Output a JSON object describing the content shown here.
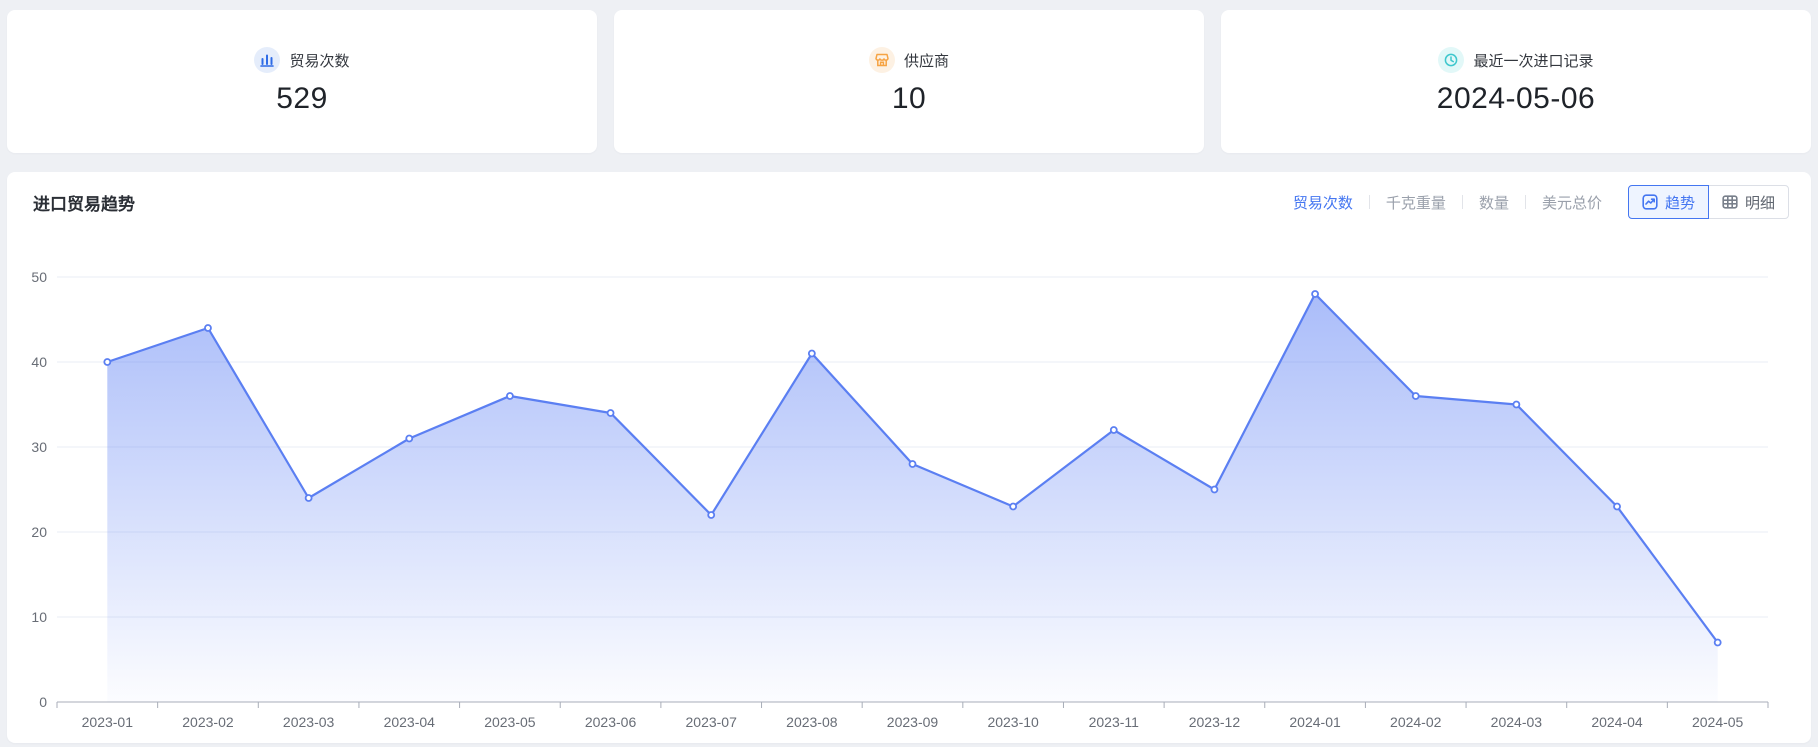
{
  "stats": [
    {
      "icon": "bar-chart",
      "label": "贸易次数",
      "value": "529",
      "icon_color": "#2e6be6",
      "icon_bg": "#e5edfb"
    },
    {
      "icon": "shop",
      "label": "供应商",
      "value": "10",
      "icon_color": "#f6a343",
      "icon_bg": "#fdf1e3"
    },
    {
      "icon": "clock",
      "label": "最近一次进口记录",
      "value": "2024-05-06",
      "icon_color": "#3ec7cd",
      "icon_bg": "#e2f8f8"
    }
  ],
  "trend_panel": {
    "title": "进口贸易趋势",
    "metric_tabs": [
      {
        "label": "贸易次数",
        "active": true
      },
      {
        "label": "千克重量",
        "active": false
      },
      {
        "label": "数量",
        "active": false
      },
      {
        "label": "美元总价",
        "active": false
      }
    ],
    "view_toggle": [
      {
        "label": "趋势",
        "icon": "trend-icon",
        "active": true
      },
      {
        "label": "明细",
        "icon": "table-icon",
        "active": false
      }
    ]
  },
  "chart_data": {
    "type": "area",
    "title": "进口贸易趋势",
    "xlabel": "",
    "ylabel": "",
    "x": [
      "2023-01",
      "2023-02",
      "2023-03",
      "2023-04",
      "2023-05",
      "2023-06",
      "2023-07",
      "2023-08",
      "2023-09",
      "2023-10",
      "2023-11",
      "2023-12",
      "2024-01",
      "2024-02",
      "2024-03",
      "2024-04",
      "2024-05"
    ],
    "series": [
      {
        "name": "贸易次数",
        "values": [
          40,
          44,
          24,
          31,
          36,
          34,
          22,
          41,
          28,
          23,
          32,
          25,
          48,
          36,
          35,
          23,
          7
        ]
      }
    ],
    "ylim": [
      0,
      50
    ],
    "yticks": [
      0,
      10,
      20,
      30,
      40,
      50
    ],
    "grid": true,
    "legend_position": "none",
    "line_color": "#5b7ff2",
    "marker_fill": "#ffffff",
    "area_color_top": "rgba(94,129,244,0.55)",
    "area_color_bottom": "rgba(94,129,244,0.02)",
    "grid_color": "#e9edf5",
    "axis_color": "#a8adb8"
  }
}
